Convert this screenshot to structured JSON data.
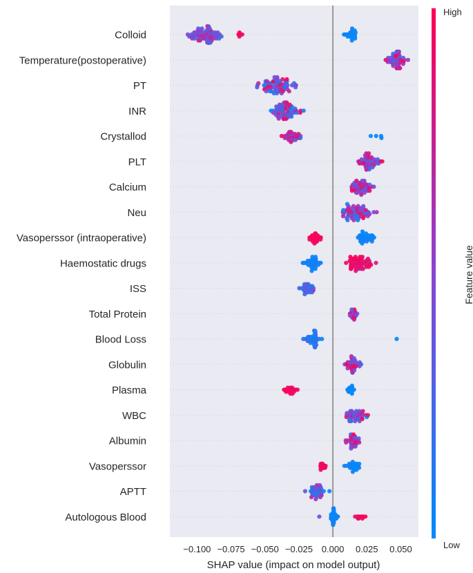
{
  "chart_data": {
    "type": "scatter",
    "subtype": "shap-beeswarm",
    "xlabel": "SHAP value (impact on model output)",
    "xlim": [
      -0.12,
      0.063
    ],
    "xticks": [
      -0.1,
      -0.075,
      -0.05,
      -0.025,
      0.0,
      0.025,
      0.05
    ],
    "xtick_labels": [
      "−0.100",
      "−0.075",
      "−0.050",
      "−0.025",
      "0.000",
      "0.025",
      "0.050"
    ],
    "zero_line": 0.0,
    "colorbar": {
      "label": "Feature value",
      "high": "High",
      "low": "Low",
      "low_color": "#008afb",
      "mid_color": "#8a44d3",
      "high_color": "#ff0052"
    },
    "features": [
      {
        "name": "Colloid",
        "clusters": [
          {
            "lo": -0.111,
            "hi": -0.078,
            "n": 70,
            "c0": 0.25,
            "c1": 0.75
          },
          {
            "lo": -0.072,
            "hi": -0.064,
            "n": 6,
            "c0": 0.9,
            "c1": 1.0
          },
          {
            "lo": 0.006,
            "hi": 0.021,
            "n": 26,
            "c0": 0.0,
            "c1": 0.08
          }
        ]
      },
      {
        "name": "Temperature(postoperative)",
        "clusters": [
          {
            "lo": 0.036,
            "hi": 0.058,
            "n": 60,
            "c0": 0.2,
            "c1": 1.0
          }
        ]
      },
      {
        "name": "PT",
        "clusters": [
          {
            "lo": -0.063,
            "hi": -0.02,
            "n": 65,
            "c0": 0.0,
            "c1": 1.0
          }
        ]
      },
      {
        "name": "INR",
        "clusters": [
          {
            "lo": -0.052,
            "hi": -0.018,
            "n": 65,
            "c0": 0.0,
            "c1": 1.0
          }
        ]
      },
      {
        "name": "Crystallod",
        "clusters": [
          {
            "lo": -0.04,
            "hi": -0.022,
            "n": 40,
            "c0": 0.2,
            "c1": 1.0
          },
          {
            "lo": 0.025,
            "hi": 0.038,
            "n": 4,
            "c0": 0.0,
            "c1": 0.05
          }
        ]
      },
      {
        "name": "PLT",
        "clusters": [
          {
            "lo": 0.016,
            "hi": 0.038,
            "n": 55,
            "c0": 0.2,
            "c1": 1.0
          }
        ]
      },
      {
        "name": "Calcium",
        "clusters": [
          {
            "lo": 0.008,
            "hi": 0.033,
            "n": 55,
            "c0": 0.2,
            "c1": 1.0
          }
        ]
      },
      {
        "name": "Neu",
        "clusters": [
          {
            "lo": 0.0,
            "hi": 0.036,
            "n": 60,
            "c0": 0.0,
            "c1": 1.0
          }
        ]
      },
      {
        "name": "Vasoperssor (intraoperative)",
        "clusters": [
          {
            "lo": -0.019,
            "hi": -0.007,
            "n": 35,
            "c0": 0.92,
            "c1": 1.0
          },
          {
            "lo": 0.013,
            "hi": 0.035,
            "n": 35,
            "c0": 0.0,
            "c1": 0.12
          }
        ]
      },
      {
        "name": "Haemostatic drugs",
        "clusters": [
          {
            "lo": -0.024,
            "hi": -0.006,
            "n": 40,
            "c0": 0.0,
            "c1": 0.12
          },
          {
            "lo": 0.006,
            "hi": 0.033,
            "n": 60,
            "c0": 0.8,
            "c1": 1.0
          }
        ]
      },
      {
        "name": "ISS",
        "clusters": [
          {
            "lo": -0.026,
            "hi": -0.011,
            "n": 40,
            "c0": 0.0,
            "c1": 0.5
          }
        ]
      },
      {
        "name": "Total Protein",
        "clusters": [
          {
            "lo": 0.011,
            "hi": 0.021,
            "n": 30,
            "c0": 0.3,
            "c1": 1.0
          }
        ]
      },
      {
        "name": "Blood Loss",
        "clusters": [
          {
            "lo": -0.024,
            "hi": -0.006,
            "n": 40,
            "c0": 0.0,
            "c1": 0.3
          },
          {
            "lo": 0.047,
            "hi": 0.047,
            "n": 1,
            "c0": 0.0,
            "c1": 0.0
          }
        ]
      },
      {
        "name": "Globulin",
        "clusters": [
          {
            "lo": 0.007,
            "hi": 0.024,
            "n": 40,
            "c0": 0.2,
            "c1": 1.0
          }
        ]
      },
      {
        "name": "Plasma",
        "clusters": [
          {
            "lo": -0.04,
            "hi": -0.023,
            "n": 20,
            "c0": 0.92,
            "c1": 1.0
          },
          {
            "lo": 0.01,
            "hi": 0.016,
            "n": 25,
            "c0": 0.0,
            "c1": 0.05
          }
        ]
      },
      {
        "name": "WBC",
        "clusters": [
          {
            "lo": 0.004,
            "hi": 0.028,
            "n": 45,
            "c0": 0.0,
            "c1": 1.0
          }
        ]
      },
      {
        "name": "Albumin",
        "clusters": [
          {
            "lo": 0.008,
            "hi": 0.021,
            "n": 40,
            "c0": 0.3,
            "c1": 1.0
          }
        ]
      },
      {
        "name": "Vasoperssor",
        "clusters": [
          {
            "lo": -0.011,
            "hi": -0.004,
            "n": 25,
            "c0": 0.92,
            "c1": 1.0
          },
          {
            "lo": 0.007,
            "hi": 0.022,
            "n": 30,
            "c0": 0.0,
            "c1": 0.1
          }
        ]
      },
      {
        "name": "APTT",
        "clusters": [
          {
            "lo": -0.022,
            "hi": -0.001,
            "n": 40,
            "c0": 0.0,
            "c1": 0.7
          }
        ]
      },
      {
        "name": "Autologous Blood",
        "clusters": [
          {
            "lo": -0.01,
            "hi": -0.01,
            "n": 1,
            "c0": 0.4,
            "c1": 0.4
          },
          {
            "lo": -0.003,
            "hi": 0.005,
            "n": 40,
            "c0": 0.0,
            "c1": 0.08
          },
          {
            "lo": 0.014,
            "hi": 0.026,
            "n": 12,
            "c0": 0.85,
            "c1": 1.0
          }
        ]
      }
    ]
  }
}
